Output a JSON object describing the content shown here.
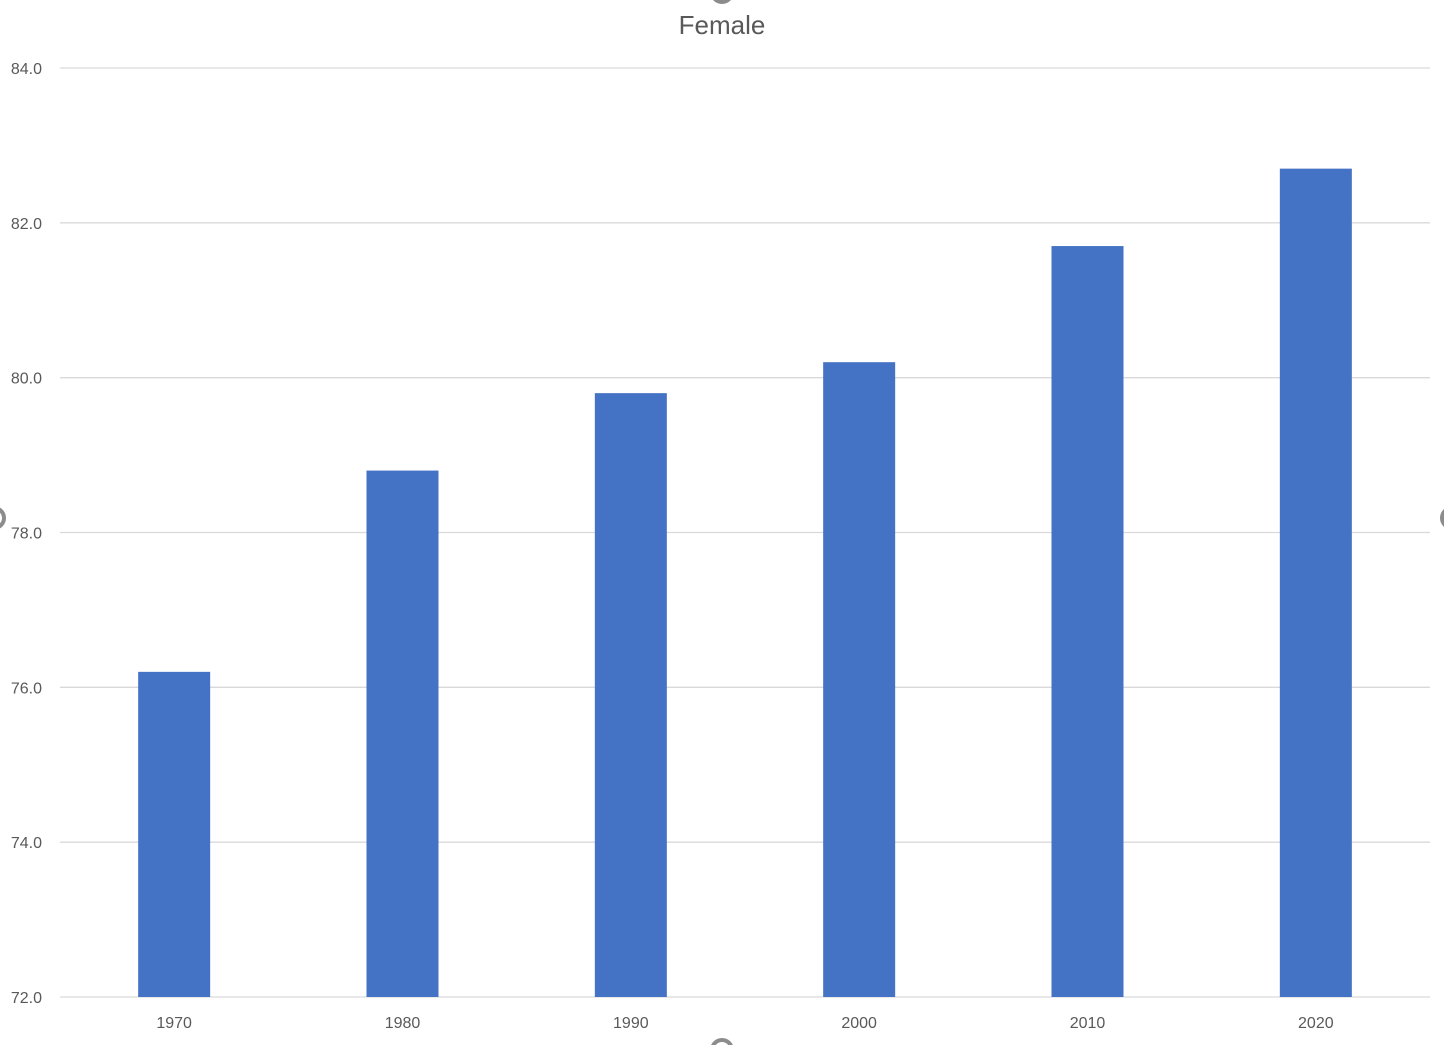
{
  "chart_data": {
    "type": "bar",
    "title": "Female",
    "xlabel": "",
    "ylabel": "",
    "categories": [
      "1970",
      "1980",
      "1990",
      "2000",
      "2010",
      "2020"
    ],
    "values": [
      76.2,
      78.8,
      79.8,
      80.2,
      81.7,
      82.7
    ],
    "ylim": [
      72.0,
      84.0
    ],
    "yticks": [
      "72.0",
      "74.0",
      "76.0",
      "78.0",
      "80.0",
      "82.0",
      "84.0"
    ],
    "grid": true,
    "legend": "none",
    "bar_color": "#4472C4"
  }
}
